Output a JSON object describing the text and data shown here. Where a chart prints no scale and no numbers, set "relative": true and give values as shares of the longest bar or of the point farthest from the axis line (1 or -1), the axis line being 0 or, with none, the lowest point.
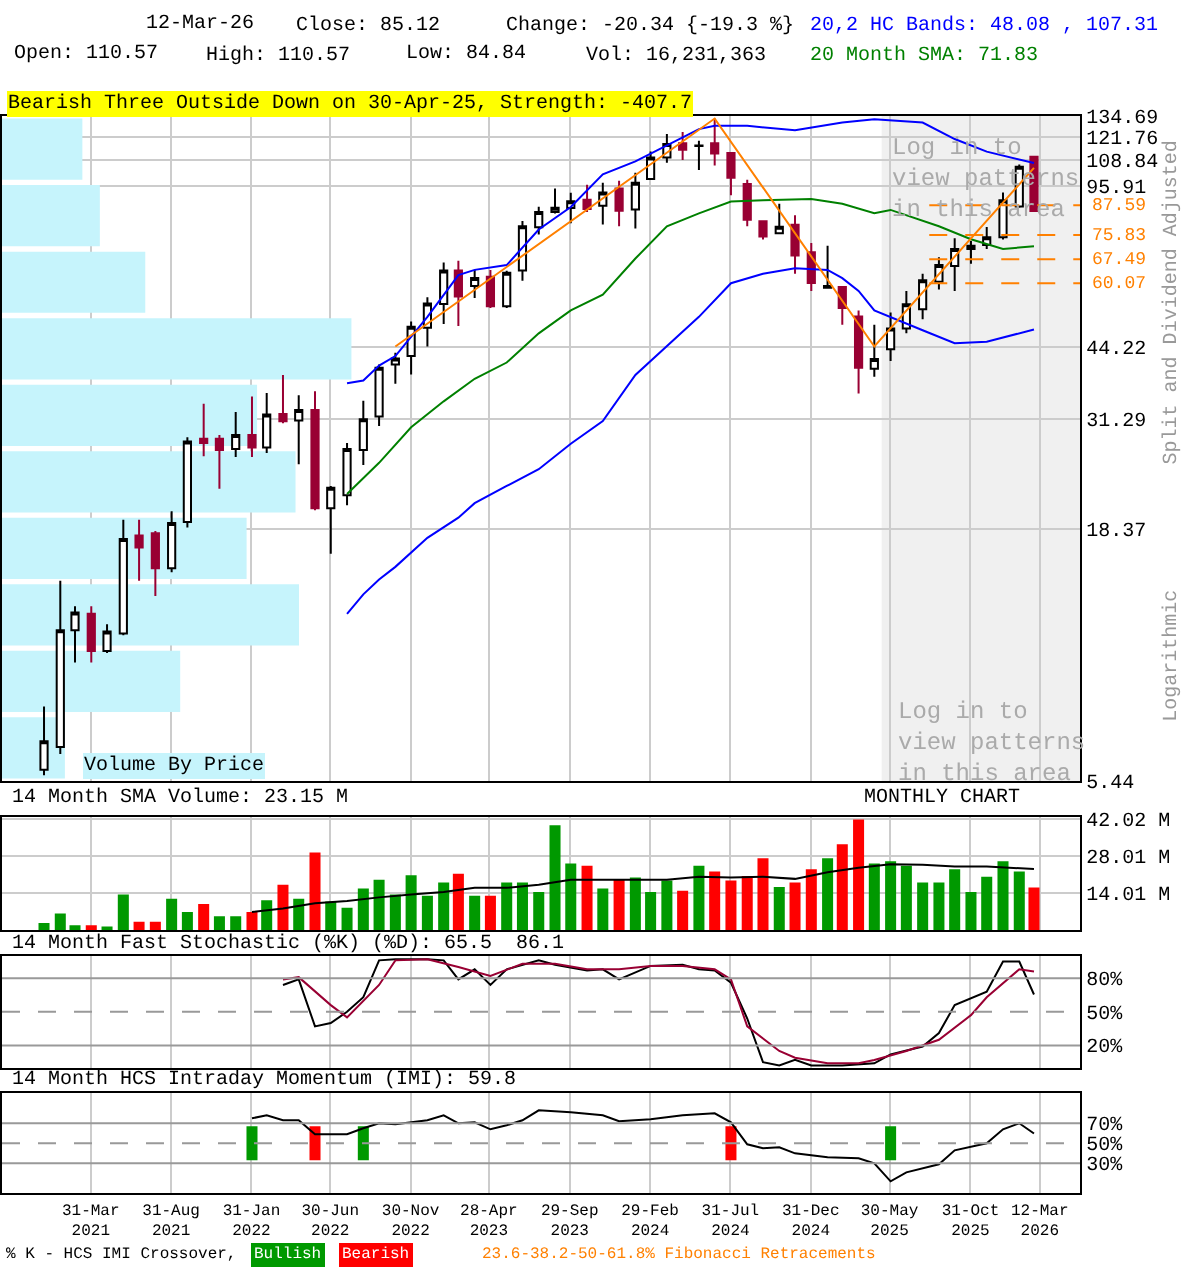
{
  "chart_data": [
    {
      "type": "candlestick",
      "title": "Bearish Three Outside Down on 30-Apr-25, Strength: -407.7",
      "ylabel": "Split and Dividend Adjusted",
      "annotations": [
        "12-Mar-26",
        "Close: 85.12",
        "Change: -20.34 {-19.3 %}",
        "Open: 110.57",
        "High: 110.57",
        "Low: 84.84",
        "Vol: 16,231,363",
        "20,2 HC Bands: 48.08 , 107.31",
        "20 Month SMA: 71.83",
        "Logarithmic",
        "Log in to\nview patterns\nin this area"
      ],
      "x": [
        "2021-01",
        "2021-02",
        "2021-03",
        "2021-04",
        "2021-05",
        "2021-06",
        "2021-07",
        "2021-08",
        "2021-09",
        "2021-10",
        "2021-11",
        "2021-12",
        "2022-01",
        "2022-02",
        "2022-03",
        "2022-04",
        "2022-05",
        "2022-06",
        "2022-07",
        "2022-08",
        "2022-09",
        "2022-10",
        "2022-11",
        "2022-12",
        "2023-01",
        "2023-02",
        "2023-03",
        "2023-04",
        "2023-05",
        "2023-06",
        "2023-07",
        "2023-08",
        "2023-09",
        "2023-10",
        "2023-11",
        "2023-12",
        "2024-01",
        "2024-02",
        "2024-03",
        "2024-04",
        "2024-05",
        "2024-06",
        "2024-07",
        "2024-08",
        "2024-09",
        "2024-10",
        "2024-11",
        "2024-12",
        "2025-01",
        "2025-02",
        "2025-03",
        "2025-04",
        "2025-05",
        "2025-06",
        "2025-07",
        "2025-08",
        "2025-09",
        "2025-10",
        "2025-11",
        "2025-12",
        "2026-01",
        "2026-02",
        "2026-03"
      ],
      "ohlc": [
        [
          5.75,
          7.8,
          5.6,
          6.6
        ],
        [
          6.42,
          14.3,
          6.2,
          11.27
        ],
        [
          11.27,
          12.65,
          9.64,
          12.27
        ],
        [
          12.2,
          12.65,
          9.64,
          10.2
        ],
        [
          10.2,
          11.6,
          10.1,
          11.2
        ],
        [
          11.1,
          19.2,
          11.0,
          17.5
        ],
        [
          17.8,
          19.2,
          14.3,
          16.8
        ],
        [
          18.0,
          18.2,
          13.3,
          15.2
        ],
        [
          15.2,
          20.0,
          14.9,
          18.9
        ],
        [
          19.0,
          28.6,
          18.5,
          28.0
        ],
        [
          28.4,
          33.6,
          26.1,
          27.8
        ],
        [
          28.4,
          28.9,
          22.3,
          26.9
        ],
        [
          27.0,
          32.3,
          26.0,
          28.9
        ],
        [
          28.9,
          34.8,
          26.0,
          27.2
        ],
        [
          27.2,
          35.4,
          26.5,
          31.9
        ],
        [
          32.0,
          38.6,
          30.6,
          30.9
        ],
        [
          31.0,
          35.0,
          25.1,
          32.6
        ],
        [
          32.6,
          35.7,
          20.1,
          20.3
        ],
        [
          20.3,
          22.6,
          16.3,
          22.4
        ],
        [
          21.6,
          27.8,
          20.6,
          27.0
        ],
        [
          26.9,
          34.1,
          25.0,
          31.2
        ],
        [
          31.6,
          40.6,
          30.2,
          40.0
        ],
        [
          40.6,
          43.0,
          37.0,
          41.8
        ],
        [
          42.3,
          50.0,
          38.7,
          48.7
        ],
        [
          48.5,
          56.2,
          44.3,
          54.5
        ],
        [
          54.4,
          66.4,
          49.4,
          63.9
        ],
        [
          63.9,
          67.0,
          48.9,
          56.4
        ],
        [
          59.3,
          64.1,
          56.0,
          61.6
        ],
        [
          62.0,
          64.1,
          53.3,
          53.8
        ],
        [
          53.8,
          63.8,
          53.3,
          63.2
        ],
        [
          63.9,
          81.1,
          60.8,
          79.1
        ],
        [
          78.7,
          86.9,
          76.0,
          84.7
        ],
        [
          84.7,
          94.9,
          84.1,
          86.5
        ],
        [
          86.4,
          93.0,
          80.3,
          89.2
        ],
        [
          89.9,
          96.7,
          84.7,
          86.0
        ],
        [
          87.3,
          97.6,
          79.8,
          93.1
        ],
        [
          94.9,
          98.5,
          79.1,
          85.3
        ],
        [
          85.8,
          102.4,
          78.3,
          97.6
        ],
        [
          99.4,
          113.4,
          99.0,
          110.2
        ],
        [
          110.2,
          123.4,
          107.5,
          117.7
        ],
        [
          118.0,
          124.6,
          108.9,
          114.4
        ],
        [
          116.5,
          119.5,
          103.8,
          116.8
        ],
        [
          118.0,
          133.0,
          106.0,
          112.3
        ],
        [
          112.6,
          112.6,
          91.9,
          100.0
        ],
        [
          97.0,
          99.0,
          79.1,
          81.6
        ],
        [
          81.0,
          81.0,
          74.2,
          75.3
        ],
        [
          76.5,
          88.2,
          76.2,
          78.9
        ],
        [
          79.7,
          83.4,
          62.9,
          68.7
        ],
        [
          69.8,
          73.0,
          57.9,
          60.2
        ],
        [
          58.8,
          72.0,
          58.6,
          59.3
        ],
        [
          59.0,
          59.0,
          49.2,
          53.3
        ],
        [
          51.2,
          52.7,
          35.3,
          40.0
        ],
        [
          39.8,
          49.2,
          38.3,
          41.7
        ],
        [
          43.7,
          52.2,
          41.3,
          48.3
        ],
        [
          48.3,
          57.9,
          47.2,
          54.3
        ],
        [
          53.0,
          62.9,
          50.5,
          61.0
        ],
        [
          60.5,
          68.1,
          58.3,
          65.6
        ],
        [
          65.3,
          74.7,
          57.9,
          70.9
        ],
        [
          70.9,
          73.7,
          66.0,
          72.0
        ],
        [
          72.3,
          78.8,
          70.9,
          75.0
        ],
        [
          75.0,
          93.1,
          74.2,
          89.7
        ],
        [
          87.0,
          106.5,
          86.5,
          105.46
        ],
        [
          110.57,
          110.57,
          84.84,
          85.12
        ]
      ],
      "series": [
        {
          "type": "line",
          "color": "#0000ff",
          "x": [
            "2022-08",
            "2022-09",
            "2022-10",
            "2022-11",
            "2023-01",
            "2023-03",
            "2023-04",
            "2023-06",
            "2023-08",
            "2023-10",
            "2023-12",
            "2024-02",
            "2024-06",
            "2024-07",
            "2024-09",
            "2024-12",
            "2025-03",
            "2025-05",
            "2025-08",
            "2025-10",
            "2025-12",
            "2026-03"
          ],
          "values": [
            37.1,
            37.6,
            40.4,
            42.3,
            51.1,
            62.5,
            64.1,
            65.6,
            77.9,
            86.8,
            101.6,
            108.2,
            126.4,
            128.4,
            128.4,
            125.7,
            130.5,
            132.5,
            130.5,
            120.5,
            113.4,
            107.31
          ]
        },
        {
          "type": "line",
          "color": "#0000ff",
          "x": [
            "2022-08",
            "2022-09",
            "2022-10",
            "2022-11",
            "2023-01",
            "2023-03",
            "2023-04",
            "2023-06",
            "2023-08",
            "2023-10",
            "2023-12",
            "2024-02",
            "2024-06",
            "2024-08",
            "2024-10",
            "2024-12",
            "2025-02",
            "2025-03",
            "2025-04",
            "2025-05",
            "2025-08",
            "2025-10",
            "2025-12",
            "2026-03"
          ],
          "values": [
            12.2,
            13.4,
            14.4,
            15.3,
            17.6,
            19.4,
            20.8,
            22.6,
            24.5,
            27.7,
            30.9,
            38.6,
            51.1,
            60.1,
            62.9,
            64.6,
            64.1,
            61.6,
            57.9,
            52.7,
            47.9,
            45.0,
            45.3,
            48.08
          ]
        },
        {
          "type": "line",
          "color": "#008000",
          "x": [
            "2022-08",
            "2022-10",
            "2022-12",
            "2023-02",
            "2023-04",
            "2023-06",
            "2023-08",
            "2023-10",
            "2023-12",
            "2024-02",
            "2024-04",
            "2024-06",
            "2024-08",
            "2024-10",
            "2025-01",
            "2025-03",
            "2025-05",
            "2025-06",
            "2025-09",
            "2025-11",
            "2026-01",
            "2026-03"
          ],
          "values": [
            21.75,
            25.27,
            30.0,
            34.0,
            37.9,
            41.0,
            47.2,
            52.7,
            56.9,
            67.7,
            79.1,
            84.2,
            89.1,
            89.7,
            90.2,
            88.2,
            84.2,
            85.6,
            79.1,
            74.3,
            70.9,
            71.83
          ]
        },
        {
          "type": "line",
          "color": "#ff8000",
          "x": [
            "2022-11",
            "2024-07",
            "2025-05",
            "2026-03"
          ],
          "values": [
            44.3,
            133.0,
            44.3,
            104.8
          ]
        }
      ],
      "log": true,
      "ylim": [
        5.44,
        134.69
      ],
      "yticks": [
        5.44,
        18.37,
        31.29,
        44.22,
        95.91,
        108.84,
        121.76,
        134.69
      ],
      "xlim": [
        "2020-10-13",
        "2026-05-28"
      ],
      "xticks": [
        {
          "value": "2021-03-31",
          "label": null
        },
        {
          "value": "2021-08-31",
          "label": null
        },
        {
          "value": "2022-01-31",
          "label": null
        },
        {
          "value": "2022-06-30",
          "label": null
        },
        {
          "value": "2022-11-30",
          "label": null
        },
        {
          "value": "2023-04-28",
          "label": null
        },
        {
          "value": "2023-09-29",
          "label": null
        },
        {
          "value": "2024-02-29",
          "label": null
        },
        {
          "value": "2024-07-31",
          "label": null
        },
        {
          "value": "2024-12-31",
          "label": null
        },
        {
          "value": "2025-05-30",
          "label": null
        },
        {
          "value": "2025-10-31",
          "label": null
        },
        {
          "value": "2026-03-12",
          "label": null
        }
      ],
      "ref_lines": [
        {
          "axis": "y",
          "value": 87.59,
          "label": "87.59",
          "color": "#ff8000",
          "line_style": "dashed"
        },
        {
          "axis": "y",
          "value": 75.83,
          "label": "75.83",
          "color": "#ff8000",
          "line_style": "dashed"
        },
        {
          "axis": "y",
          "value": 67.49,
          "label": "67.49",
          "color": "#ff8000",
          "line_style": "dashed"
        },
        {
          "axis": "y",
          "value": 60.07,
          "label": "60.07",
          "color": "#ff8000",
          "line_style": "dashed"
        }
      ],
      "bands": [
        {
          "axis": "x",
          "from": "2025-05-15",
          "to": "2026-05-28",
          "label": "Log in to\nview patterns\nin this area",
          "color": "#f0f0f0"
        }
      ],
      "grid": true,
      "tick_labels": "y"
    },
    {
      "type": "bar",
      "orientation": "horizontal",
      "relative": true,
      "title": "Volume By Price",
      "categories": [
        null,
        null,
        null,
        null,
        null,
        null,
        null,
        null,
        null,
        null
      ],
      "values": [
        0.23,
        0.28,
        0.41,
        1,
        0.73,
        0.84,
        0.7,
        0.85,
        0.51,
        0.18
      ],
      "color": "#c6f4fc"
    },
    {
      "type": "bar",
      "title": "14 Month SMA Volume: 23.15 M",
      "annotations": [
        "MONTHLY CHART"
      ],
      "x": [
        "2021-01",
        "2021-02",
        "2021-03",
        "2021-04",
        "2021-05",
        "2021-06",
        "2021-07",
        "2021-08",
        "2021-09",
        "2021-10",
        "2021-11",
        "2021-12",
        "2022-01",
        "2022-02",
        "2022-03",
        "2022-04",
        "2022-05",
        "2022-06",
        "2022-07",
        "2022-08",
        "2022-09",
        "2022-10",
        "2022-11",
        "2022-12",
        "2023-01",
        "2023-02",
        "2023-03",
        "2023-04",
        "2023-05",
        "2023-06",
        "2023-07",
        "2023-08",
        "2023-09",
        "2023-10",
        "2023-11",
        "2023-12",
        "2024-01",
        "2024-02",
        "2024-03",
        "2024-04",
        "2024-05",
        "2024-06",
        "2024-07",
        "2024-08",
        "2024-09",
        "2024-10",
        "2024-11",
        "2024-12",
        "2025-01",
        "2025-02",
        "2025-03",
        "2025-04",
        "2025-05",
        "2025-06",
        "2025-07",
        "2025-08",
        "2025-09",
        "2025-10",
        "2025-11",
        "2025-12",
        "2026-01",
        "2026-02",
        "2026-03"
      ],
      "series": [
        {
          "values": [
            2.8,
            6.4,
            1.9,
            1.9,
            1.4,
            13.6,
            3.3,
            3.3,
            12.0,
            7.0,
            10.0,
            5.3,
            5.3,
            7.0,
            11.4,
            17.3,
            12.0,
            29.5,
            10.9,
            8.6,
            15.9,
            19.2,
            13.6,
            20.9,
            13.1,
            18.1,
            21.4,
            13.1,
            13.1,
            18.1,
            18.1,
            14.5,
            39.8,
            25.3,
            24.5,
            15.9,
            19.2,
            20.0,
            14.5,
            18.9,
            15.0,
            24.5,
            22.3,
            18.9,
            20.6,
            27.3,
            16.4,
            18.1,
            23.1,
            27.3,
            32.6,
            42.0,
            25.3,
            26.2,
            24.5,
            18.1,
            18.1,
            23.1,
            14.5,
            20.3,
            26.2,
            22.3,
            16.2
          ],
          "colors": [
            "#009900",
            "#009900",
            "#009900",
            "#ff0000",
            "#009900",
            "#009900",
            "#ff0000",
            "#ff0000",
            "#009900",
            "#009900",
            "#ff0000",
            "#009900",
            "#009900",
            "#ff0000",
            "#009900",
            "#ff0000",
            "#009900",
            "#ff0000",
            "#009900",
            "#009900",
            "#009900",
            "#009900",
            "#009900",
            "#009900",
            "#009900",
            "#009900",
            "#ff0000",
            "#009900",
            "#ff0000",
            "#009900",
            "#009900",
            "#009900",
            "#009900",
            "#009900",
            "#ff0000",
            "#009900",
            "#ff0000",
            "#009900",
            "#009900",
            "#009900",
            "#ff0000",
            "#009900",
            "#ff0000",
            "#ff0000",
            "#ff0000",
            "#ff0000",
            "#009900",
            "#ff0000",
            "#ff0000",
            "#009900",
            "#ff0000",
            "#ff0000",
            "#009900",
            "#009900",
            "#009900",
            "#009900",
            "#009900",
            "#009900",
            "#009900",
            "#009900",
            "#009900",
            "#009900",
            "#ff0000"
          ]
        },
        {
          "type": "line",
          "color": "#000000",
          "x": [
            "2022-02",
            "2022-04",
            "2022-06",
            "2022-08",
            "2022-10",
            "2022-12",
            "2023-02",
            "2023-04",
            "2023-06",
            "2023-08",
            "2023-10",
            "2023-12",
            "2024-02",
            "2024-04",
            "2024-06",
            "2024-08",
            "2024-10",
            "2024-12",
            "2025-02",
            "2025-04",
            "2025-06",
            "2025-08",
            "2025-10",
            "2025-12",
            "2026-03"
          ],
          "values": [
            7.0,
            8.3,
            10.3,
            11.1,
            12.5,
            13.6,
            14.5,
            16.1,
            16.1,
            17.3,
            19.2,
            19.2,
            19.2,
            19.2,
            20.3,
            20.0,
            20.3,
            19.5,
            22.0,
            23.7,
            25.0,
            24.8,
            24.2,
            24.2,
            23.2
          ]
        }
      ],
      "ylim": [
        0,
        43.1
      ],
      "yticks": [
        {
          "value": 14.01,
          "label": "14.01 M"
        },
        {
          "value": 28.01,
          "label": "28.01 M"
        },
        {
          "value": 42.02,
          "label": "42.02 M"
        }
      ],
      "xlim": [
        "2020-10-13",
        "2026-05-28"
      ],
      "xticks": [
        {
          "value": "2021-03-31",
          "label": null
        },
        {
          "value": "2021-08-31",
          "label": null
        },
        {
          "value": "2022-01-31",
          "label": null
        },
        {
          "value": "2022-06-30",
          "label": null
        },
        {
          "value": "2022-11-30",
          "label": null
        },
        {
          "value": "2023-04-28",
          "label": null
        },
        {
          "value": "2023-09-29",
          "label": null
        },
        {
          "value": "2024-02-29",
          "label": null
        },
        {
          "value": "2024-07-31",
          "label": null
        },
        {
          "value": "2024-12-31",
          "label": null
        },
        {
          "value": "2025-05-30",
          "label": null
        },
        {
          "value": "2025-10-31",
          "label": null
        },
        {
          "value": "2026-03-12",
          "label": null
        }
      ],
      "grid": true,
      "tick_labels": "y"
    },
    {
      "type": "line",
      "title": "14 Month Fast Stochastic (%K) (%D): 65.5  86.1",
      "series": [
        {
          "color": "#000000",
          "x": [
            "2022-04",
            "2022-05",
            "2022-06",
            "2022-07",
            "2022-08",
            "2022-09",
            "2022-10",
            "2022-11",
            "2023-01",
            "2023-02",
            "2023-03",
            "2023-04",
            "2023-05",
            "2023-06",
            "2023-08",
            "2023-09",
            "2023-11",
            "2023-12",
            "2024-01",
            "2024-03",
            "2024-05",
            "2024-06",
            "2024-07",
            "2024-08",
            "2024-09",
            "2024-10",
            "2024-11",
            "2024-12",
            "2025-01",
            "2025-03",
            "2025-05",
            "2025-06",
            "2025-08",
            "2025-09",
            "2025-10",
            "2025-12",
            "2026-01",
            "2026-02",
            "2026-03"
          ],
          "values": [
            74,
            79,
            37,
            40,
            50,
            63,
            96,
            97,
            97,
            96,
            79,
            88,
            74,
            88,
            96,
            92,
            87,
            88,
            79,
            91,
            92,
            88,
            87,
            76,
            44,
            5,
            2,
            7,
            2,
            2,
            4,
            12,
            19,
            31,
            56,
            68,
            95,
            95,
            65.5
          ]
        },
        {
          "color": "#990033",
          "x": [
            "2022-04",
            "2022-05",
            "2022-07",
            "2022-08",
            "2022-10",
            "2022-11",
            "2023-01",
            "2023-03",
            "2023-05",
            "2023-07",
            "2023-09",
            "2023-11",
            "2024-01",
            "2024-03",
            "2024-05",
            "2024-07",
            "2024-08",
            "2024-09",
            "2024-11",
            "2024-12",
            "2025-02",
            "2025-04",
            "2025-05",
            "2025-07",
            "2025-09",
            "2025-11",
            "2025-12",
            "2026-02",
            "2026-03"
          ],
          "values": [
            79,
            81,
            56,
            45,
            74,
            96,
            97,
            90,
            82,
            93,
            93,
            88,
            88,
            91,
            91,
            88,
            79,
            37,
            15,
            9,
            4,
            4,
            7,
            15,
            25,
            47,
            63,
            88,
            86.1
          ]
        }
      ],
      "ylim": [
        0,
        100
      ],
      "yticks": [
        {
          "value": 80,
          "label": "80%"
        },
        {
          "value": 50,
          "label": "50%"
        },
        {
          "value": 20,
          "label": "20%"
        }
      ],
      "xlim": [
        "2020-10-13",
        "2026-05-28"
      ],
      "xticks": [
        {
          "value": "2021-03-31",
          "label": null
        },
        {
          "value": "2021-08-31",
          "label": null
        },
        {
          "value": "2022-01-31",
          "label": null
        },
        {
          "value": "2022-06-30",
          "label": null
        },
        {
          "value": "2022-11-30",
          "label": null
        },
        {
          "value": "2023-04-28",
          "label": null
        },
        {
          "value": "2023-09-29",
          "label": null
        },
        {
          "value": "2024-02-29",
          "label": null
        },
        {
          "value": "2024-07-31",
          "label": null
        },
        {
          "value": "2024-12-31",
          "label": null
        },
        {
          "value": "2025-05-30",
          "label": null
        },
        {
          "value": "2025-10-31",
          "label": null
        },
        {
          "value": "2026-03-12",
          "label": null
        }
      ],
      "ref_lines": [
        {
          "axis": "y",
          "value": 80,
          "color": "#999999",
          "line_style": "solid"
        },
        {
          "axis": "y",
          "value": 50,
          "color": "#999999",
          "line_style": "dashed"
        },
        {
          "axis": "y",
          "value": 20,
          "color": "#999999",
          "line_style": "solid"
        }
      ],
      "grid": "x",
      "tick_labels": "y"
    },
    {
      "type": "line",
      "title": "14 Month HCS Intraday Momentum (IMI): 59.8",
      "annotations": [
        "% K - HCS IMI Crossover,",
        "23.6-38.2-50-61.8% Fibonacci Retracements"
      ],
      "series": [
        {
          "color": "#000000",
          "x": [
            "2022-02",
            "2022-03",
            "2022-04",
            "2022-05",
            "2022-06",
            "2022-07",
            "2022-08",
            "2022-09",
            "2022-10",
            "2022-11",
            "2023-01",
            "2023-02",
            "2023-03",
            "2023-04",
            "2023-05",
            "2023-06",
            "2023-07",
            "2023-08",
            "2023-10",
            "2023-12",
            "2024-01",
            "2024-03",
            "2024-05",
            "2024-07",
            "2024-08",
            "2024-09",
            "2024-10",
            "2024-11",
            "2024-12",
            "2025-02",
            "2025-04",
            "2025-05",
            "2025-06",
            "2025-07",
            "2025-09",
            "2025-10",
            "2025-12",
            "2026-01",
            "2026-02",
            "2026-03"
          ],
          "values": [
            75,
            78,
            73,
            73,
            59,
            59,
            59,
            65,
            70,
            69,
            73,
            78,
            70,
            71,
            64,
            68,
            73,
            83,
            81,
            78,
            72,
            74,
            78,
            80,
            71,
            49,
            45,
            46,
            40,
            36,
            35,
            30,
            12,
            21,
            29,
            43,
            50,
            64,
            70,
            59.8
          ]
        },
        {
          "type": "bar",
          "name": "Bullish",
          "color": "#009900",
          "x": [
            "2022-02",
            "2022-09",
            "2025-06"
          ],
          "base": [
            33,
            33,
            33
          ],
          "values": [
            34,
            34,
            34
          ]
        },
        {
          "type": "bar",
          "name": "Bearish",
          "color": "#ff0000",
          "x": [
            "2022-06",
            "2024-08"
          ],
          "base": [
            33,
            33
          ],
          "values": [
            34,
            34
          ]
        }
      ],
      "ylim": [
        0,
        100
      ],
      "yticks": [
        {
          "value": 70,
          "label": "70%"
        },
        {
          "value": 50,
          "label": "50%"
        },
        {
          "value": 30,
          "label": "30%"
        }
      ],
      "xlim": [
        "2020-10-13",
        "2026-05-28"
      ],
      "xticks": [
        {
          "value": "2021-03-31",
          "label": "31-Mar\n2021"
        },
        {
          "value": "2021-08-31",
          "label": "31-Aug\n2021"
        },
        {
          "value": "2022-01-31",
          "label": "31-Jan\n2022"
        },
        {
          "value": "2022-06-30",
          "label": "30-Jun\n2022"
        },
        {
          "value": "2022-11-30",
          "label": "30-Nov\n2022"
        },
        {
          "value": "2023-04-28",
          "label": "28-Apr\n2023"
        },
        {
          "value": "2023-09-29",
          "label": "29-Sep\n2023"
        },
        {
          "value": "2024-02-29",
          "label": "29-Feb\n2024"
        },
        {
          "value": "2024-07-31",
          "label": "31-Jul\n2024"
        },
        {
          "value": "2024-12-31",
          "label": "31-Dec\n2024"
        },
        {
          "value": "2025-05-30",
          "label": "30-May\n2025"
        },
        {
          "value": "2025-10-31",
          "label": "31-Oct\n2025"
        },
        {
          "value": "2026-03-12",
          "label": "12-Mar\n2026"
        }
      ],
      "ref_lines": [
        {
          "axis": "y",
          "value": 70,
          "color": "#999999",
          "line_style": "solid"
        },
        {
          "axis": "y",
          "value": 50,
          "color": "#999999",
          "line_style": "dashed"
        },
        {
          "axis": "y",
          "value": 30,
          "color": "#999999",
          "line_style": "solid"
        }
      ],
      "grid": "x",
      "legend": "bottom left"
    }
  ]
}
